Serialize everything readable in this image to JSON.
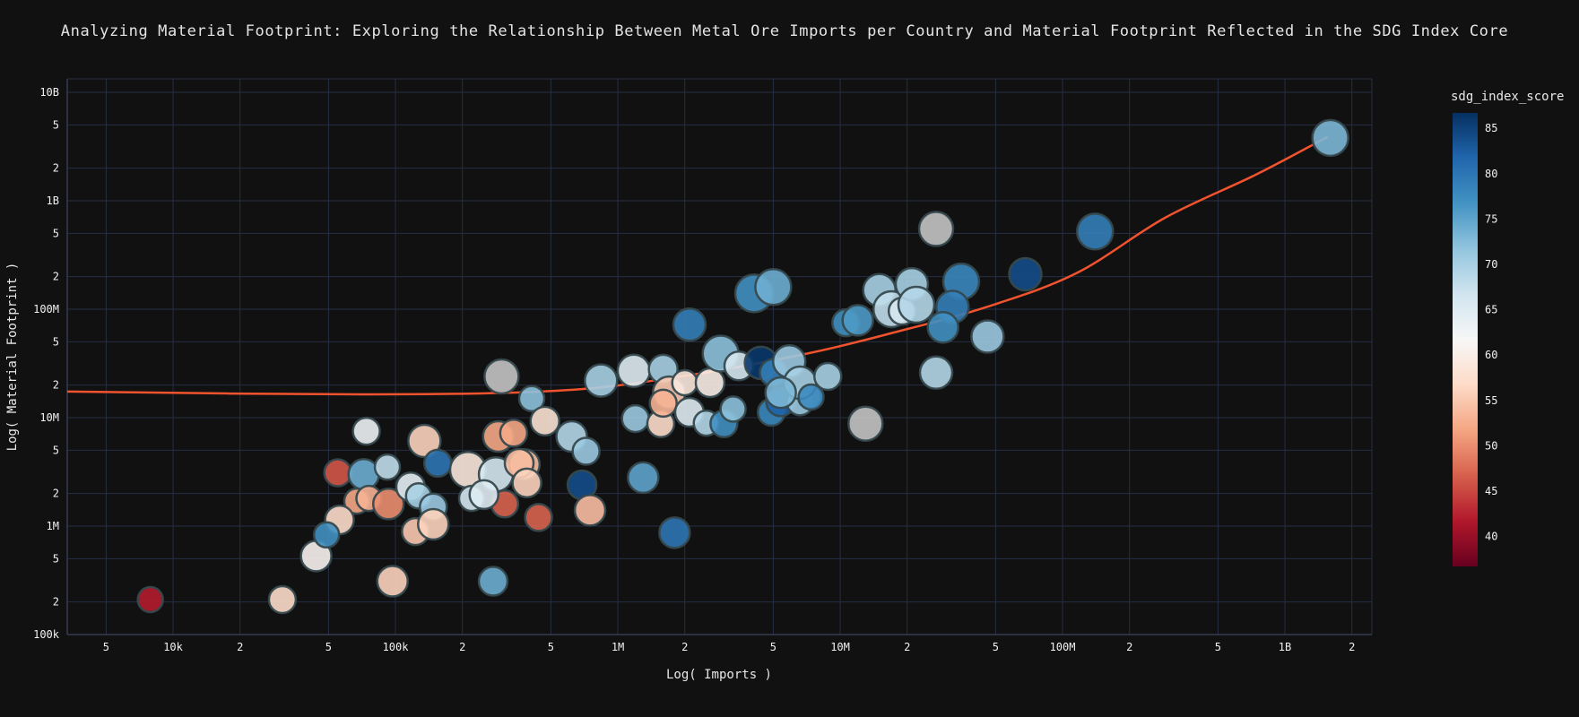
{
  "title": "Analyzing Material Footprint: Exploring the Relationship Between Metal Ore Imports per Country and Material Footprint Reflected in the SDG Index Core",
  "theme": {
    "background": "#111111",
    "grid_color": "#272e44",
    "axis_line_color": "#3e4660",
    "text_color": "#f2f2f2",
    "trend_color": "#f0532d",
    "marker_outline": "#36494e",
    "missing_value_color": "#c4c4c4"
  },
  "chart_data": {
    "type": "scatter",
    "title": "Analyzing Material Footprint: Exploring the Relationship Between Metal Ore Imports per Country and Material Footprint Reflected in the SDG Index Core",
    "xlabel": "Log( Imports )",
    "ylabel": "Log( Material Footprint )",
    "legend": "none",
    "grid": true,
    "x_axis": {
      "scale": "log",
      "range_log10": [
        3.524,
        9.391
      ],
      "ticks": [
        {
          "v": 5000,
          "label": "5"
        },
        {
          "v": 10000,
          "label": "10k"
        },
        {
          "v": 20000,
          "label": "2"
        },
        {
          "v": 50000,
          "label": "5"
        },
        {
          "v": 100000,
          "label": "100k"
        },
        {
          "v": 200000,
          "label": "2"
        },
        {
          "v": 500000,
          "label": "5"
        },
        {
          "v": 1000000,
          "label": "1M"
        },
        {
          "v": 2000000,
          "label": "2"
        },
        {
          "v": 5000000,
          "label": "5"
        },
        {
          "v": 10000000,
          "label": "10M"
        },
        {
          "v": 20000000,
          "label": "2"
        },
        {
          "v": 50000000,
          "label": "5"
        },
        {
          "v": 100000000,
          "label": "100M"
        },
        {
          "v": 200000000,
          "label": "2"
        },
        {
          "v": 500000000,
          "label": "5"
        },
        {
          "v": 1000000000,
          "label": "1B"
        },
        {
          "v": 2000000000,
          "label": "2"
        }
      ]
    },
    "y_axis": {
      "scale": "log",
      "range_log10": [
        5.0,
        10.124
      ],
      "ticks": [
        {
          "v": 100000,
          "label": "100k"
        },
        {
          "v": 200000,
          "label": "2"
        },
        {
          "v": 500000,
          "label": "5"
        },
        {
          "v": 1000000,
          "label": "1M"
        },
        {
          "v": 2000000,
          "label": "2"
        },
        {
          "v": 5000000,
          "label": "5"
        },
        {
          "v": 10000000,
          "label": "10M"
        },
        {
          "v": 20000000,
          "label": "2"
        },
        {
          "v": 50000000,
          "label": "5"
        },
        {
          "v": 100000000,
          "label": "100M"
        },
        {
          "v": 200000000,
          "label": "2"
        },
        {
          "v": 500000000,
          "label": "5"
        },
        {
          "v": 1000000000,
          "label": "1B"
        },
        {
          "v": 2000000000,
          "label": "2"
        },
        {
          "v": 5000000000,
          "label": "5"
        },
        {
          "v": 10000000000,
          "label": "10B"
        }
      ]
    },
    "colorbar": {
      "title": "sdg_index_score",
      "min": 36.7,
      "max": 86.7,
      "ticks": [
        85,
        80,
        75,
        70,
        65,
        60,
        55,
        50,
        45,
        40
      ]
    },
    "colormap_rdbu": [
      "#67001f",
      "#b2182b",
      "#d6604d",
      "#f4a582",
      "#fddbc7",
      "#f7f7f7",
      "#d1e5f0",
      "#92c5de",
      "#4393c3",
      "#2166ac",
      "#053061"
    ],
    "trendline": {
      "color": "#f0532d",
      "width": 2.5,
      "points": [
        {
          "imports": 3300,
          "footprint": 17400000
        },
        {
          "imports": 68000,
          "footprint": 16400000
        },
        {
          "imports": 530000,
          "footprint": 17700000
        },
        {
          "imports": 1930000,
          "footprint": 24000000
        },
        {
          "imports": 7100000,
          "footprint": 39000000
        },
        {
          "imports": 18000000,
          "footprint": 62000000
        },
        {
          "imports": 45000000,
          "footprint": 104000000
        },
        {
          "imports": 115000000,
          "footprint": 214000000
        },
        {
          "imports": 290000000,
          "footprint": 700000000
        },
        {
          "imports": 740000000,
          "footprint": 1740000000
        },
        {
          "imports": 1560000000,
          "footprint": 3900000000
        }
      ]
    },
    "points": [
      {
        "imports": 7900,
        "footprint": 210000,
        "sdg": 42,
        "r": 14
      },
      {
        "imports": 31000,
        "footprint": 210000,
        "sdg": 57,
        "r": 15
      },
      {
        "imports": 44000,
        "footprint": 530000,
        "sdg": 61,
        "r": 17
      },
      {
        "imports": 55000,
        "footprint": 3100000,
        "sdg": 46,
        "r": 15
      },
      {
        "imports": 72000,
        "footprint": 3000000,
        "sdg": 74,
        "r": 17
      },
      {
        "imports": 67000,
        "footprint": 1700000,
        "sdg": 52,
        "r": 14
      },
      {
        "imports": 76000,
        "footprint": 1800000,
        "sdg": 53,
        "r": 14
      },
      {
        "imports": 93000,
        "footprint": 1600000,
        "sdg": 50,
        "r": 17
      },
      {
        "imports": 56000,
        "footprint": 1140000,
        "sdg": 57,
        "r": 16
      },
      {
        "imports": 49000,
        "footprint": 830000,
        "sdg": 77,
        "r": 14
      },
      {
        "imports": 97000,
        "footprint": 310000,
        "sdg": 56,
        "r": 17
      },
      {
        "imports": 275000,
        "footprint": 310000,
        "sdg": 74,
        "r": 16
      },
      {
        "imports": 117000,
        "footprint": 2300000,
        "sdg": 64,
        "r": 16
      },
      {
        "imports": 127000,
        "footprint": 1900000,
        "sdg": 70,
        "r": 14
      },
      {
        "imports": 148000,
        "footprint": 1500000,
        "sdg": 71,
        "r": 15
      },
      {
        "imports": 123000,
        "footprint": 890000,
        "sdg": 55,
        "r": 15
      },
      {
        "imports": 148000,
        "footprint": 1040000,
        "sdg": 56,
        "r": 17
      },
      {
        "imports": 135000,
        "footprint": 6100000,
        "sdg": 56,
        "r": 18
      },
      {
        "imports": 155000,
        "footprint": 3800000,
        "sdg": 80,
        "r": 15
      },
      {
        "imports": 212000,
        "footprint": 3300000,
        "sdg": 59,
        "r": 20
      },
      {
        "imports": 283000,
        "footprint": 3000000,
        "sdg": 66,
        "r": 19
      },
      {
        "imports": 380000,
        "footprint": 3700000,
        "sdg": 54,
        "r": 17
      },
      {
        "imports": 290000,
        "footprint": 6700000,
        "sdg": 52,
        "r": 17
      },
      {
        "imports": 310000,
        "footprint": 1600000,
        "sdg": 47,
        "r": 15
      },
      {
        "imports": 220000,
        "footprint": 1800000,
        "sdg": 66,
        "r": 14
      },
      {
        "imports": 250000,
        "footprint": 1950000,
        "sdg": 65,
        "r": 16
      },
      {
        "imports": 74000,
        "footprint": 7500000,
        "sdg": 63,
        "r": 15
      },
      {
        "imports": 92000,
        "footprint": 3500000,
        "sdg": 68,
        "r": 14
      },
      {
        "imports": 300000,
        "footprint": 24000000,
        "sdg": null,
        "r": 19
      },
      {
        "imports": 410000,
        "footprint": 15000000,
        "sdg": 72,
        "r": 14
      },
      {
        "imports": 360000,
        "footprint": 3800000,
        "sdg": 54,
        "r": 16
      },
      {
        "imports": 390000,
        "footprint": 2500000,
        "sdg": 56,
        "r": 16
      },
      {
        "imports": 340000,
        "footprint": 7200000,
        "sdg": 52,
        "r": 15
      },
      {
        "imports": 470000,
        "footprint": 9300000,
        "sdg": 58,
        "r": 16
      },
      {
        "imports": 620000,
        "footprint": 6700000,
        "sdg": 69,
        "r": 17
      },
      {
        "imports": 690000,
        "footprint": 2400000,
        "sdg": 84,
        "r": 16
      },
      {
        "imports": 750000,
        "footprint": 1400000,
        "sdg": 54,
        "r": 17
      },
      {
        "imports": 440000,
        "footprint": 1200000,
        "sdg": 47,
        "r": 15
      },
      {
        "imports": 1300000,
        "footprint": 2800000,
        "sdg": 75,
        "r": 17
      },
      {
        "imports": 1800000,
        "footprint": 870000,
        "sdg": 80,
        "r": 17
      },
      {
        "imports": 840000,
        "footprint": 22000000,
        "sdg": 70,
        "r": 18
      },
      {
        "imports": 1180000,
        "footprint": 27000000,
        "sdg": 65,
        "r": 18
      },
      {
        "imports": 1600000,
        "footprint": 28000000,
        "sdg": 70,
        "r": 16
      },
      {
        "imports": 1700000,
        "footprint": 17000000,
        "sdg": 55,
        "r": 18
      },
      {
        "imports": 2000000,
        "footprint": 21000000,
        "sdg": 59,
        "r": 14
      },
      {
        "imports": 2600000,
        "footprint": 21000000,
        "sdg": 60,
        "r": 16
      },
      {
        "imports": 1200000,
        "footprint": 9800000,
        "sdg": 71,
        "r": 15
      },
      {
        "imports": 1560000,
        "footprint": 8800000,
        "sdg": 57,
        "r": 15
      },
      {
        "imports": 1600000,
        "footprint": 13600000,
        "sdg": 53,
        "r": 15
      },
      {
        "imports": 2100000,
        "footprint": 11200000,
        "sdg": 65,
        "r": 16
      },
      {
        "imports": 2500000,
        "footprint": 8900000,
        "sdg": 69,
        "r": 14
      },
      {
        "imports": 3000000,
        "footprint": 8800000,
        "sdg": 77,
        "r": 15
      },
      {
        "imports": 3300000,
        "footprint": 12000000,
        "sdg": 72,
        "r": 14
      },
      {
        "imports": 4900000,
        "footprint": 11200000,
        "sdg": 78,
        "r": 15
      },
      {
        "imports": 5400000,
        "footprint": 14000000,
        "sdg": 82,
        "r": 16
      },
      {
        "imports": 6600000,
        "footprint": 14000000,
        "sdg": 71,
        "r": 15
      },
      {
        "imports": 7300000,
        "footprint": 15500000,
        "sdg": 69,
        "r": 13
      },
      {
        "imports": 2900000,
        "footprint": 39000000,
        "sdg": 72,
        "r": 20
      },
      {
        "imports": 3500000,
        "footprint": 30000000,
        "sdg": 66,
        "r": 16
      },
      {
        "imports": 4400000,
        "footprint": 32000000,
        "sdg": 86,
        "r": 18
      },
      {
        "imports": 5000000,
        "footprint": 26000000,
        "sdg": 79,
        "r": 15
      },
      {
        "imports": 5900000,
        "footprint": 33000000,
        "sdg": 71,
        "r": 18
      },
      {
        "imports": 6600000,
        "footprint": 21000000,
        "sdg": 70,
        "r": 18
      },
      {
        "imports": 5400000,
        "footprint": 17000000,
        "sdg": 73,
        "r": 17
      },
      {
        "imports": 8800000,
        "footprint": 24000000,
        "sdg": 70,
        "r": 15
      },
      {
        "imports": 7400000,
        "footprint": 15500000,
        "sdg": 78,
        "r": 14
      },
      {
        "imports": 10600000,
        "footprint": 75000000,
        "sdg": 77,
        "r": 15
      },
      {
        "imports": 2100000,
        "footprint": 72000000,
        "sdg": 79,
        "r": 18
      },
      {
        "imports": 4100000,
        "footprint": 140000000,
        "sdg": 77,
        "r": 21
      },
      {
        "imports": 5000000,
        "footprint": 160000000,
        "sdg": 74,
        "r": 20
      },
      {
        "imports": 12000000,
        "footprint": 79000000,
        "sdg": 76,
        "r": 17
      },
      {
        "imports": 15000000,
        "footprint": 150000000,
        "sdg": 70,
        "r": 18
      },
      {
        "imports": 17000000,
        "footprint": 100000000,
        "sdg": 68,
        "r": 20
      },
      {
        "imports": 19000000,
        "footprint": 96000000,
        "sdg": 66,
        "r": 15
      },
      {
        "imports": 21000000,
        "footprint": 170000000,
        "sdg": 70,
        "r": 18
      },
      {
        "imports": 22000000,
        "footprint": 110000000,
        "sdg": 69,
        "r": 20
      },
      {
        "imports": 27000000,
        "footprint": 550000000,
        "sdg": null,
        "r": 19
      },
      {
        "imports": 35000000,
        "footprint": 180000000,
        "sdg": 78,
        "r": 20
      },
      {
        "imports": 32000000,
        "footprint": 105000000,
        "sdg": 79,
        "r": 18
      },
      {
        "imports": 29000000,
        "footprint": 68000000,
        "sdg": 77,
        "r": 17
      },
      {
        "imports": 46000000,
        "footprint": 56000000,
        "sdg": 71,
        "r": 18
      },
      {
        "imports": 68000000,
        "footprint": 210000000,
        "sdg": 84,
        "r": 18
      },
      {
        "imports": 140000000,
        "footprint": 520000000,
        "sdg": 79,
        "r": 20
      },
      {
        "imports": 1600000000,
        "footprint": 3800000000,
        "sdg": 73,
        "r": 20
      },
      {
        "imports": 13000000,
        "footprint": 8800000,
        "sdg": null,
        "r": 19
      },
      {
        "imports": 27000000,
        "footprint": 26000000,
        "sdg": 69,
        "r": 18
      },
      {
        "imports": 720000,
        "footprint": 4900000,
        "sdg": 71,
        "r": 15
      }
    ]
  }
}
